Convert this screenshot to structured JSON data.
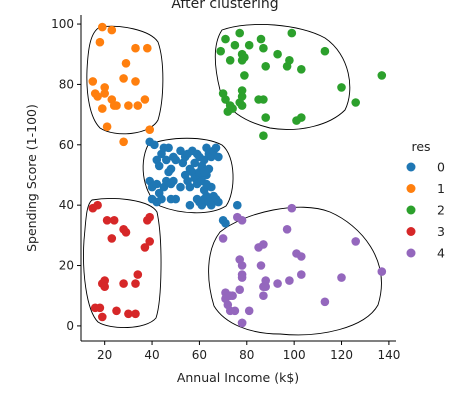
{
  "chart_data": {
    "type": "scatter",
    "title": "After clustering",
    "xlabel": "Annual Income (k$)",
    "ylabel": "Spending Score (1-100)",
    "xlim": [
      10,
      143
    ],
    "ylim": [
      -5,
      103
    ],
    "xticks": [
      20,
      40,
      60,
      80,
      100,
      120,
      140
    ],
    "yticks": [
      0,
      20,
      40,
      60,
      80,
      100
    ],
    "grid": false,
    "legend_title": "res",
    "legend_position": "right",
    "series": [
      {
        "name": "0",
        "color": "#1f77b4",
        "points": [
          [
            39,
            61
          ],
          [
            41,
            60
          ],
          [
            42,
            55
          ],
          [
            43,
            53
          ],
          [
            44,
            57
          ],
          [
            45,
            59
          ],
          [
            46,
            55
          ],
          [
            47,
            59
          ],
          [
            48,
            52
          ],
          [
            49,
            56
          ],
          [
            50,
            55
          ],
          [
            52,
            58
          ],
          [
            53,
            54
          ],
          [
            54,
            56
          ],
          [
            55,
            57
          ],
          [
            56,
            52
          ],
          [
            57,
            58
          ],
          [
            58,
            54
          ],
          [
            59,
            57
          ],
          [
            60,
            56
          ],
          [
            61,
            52
          ],
          [
            62,
            55
          ],
          [
            63,
            59
          ],
          [
            64,
            57
          ],
          [
            65,
            56
          ],
          [
            66,
            58
          ],
          [
            67,
            59
          ],
          [
            68,
            56
          ],
          [
            39,
            48
          ],
          [
            40,
            46
          ],
          [
            42,
            47
          ],
          [
            43,
            44
          ],
          [
            44,
            42
          ],
          [
            45,
            46
          ],
          [
            46,
            48
          ],
          [
            47,
            51
          ],
          [
            48,
            47
          ],
          [
            49,
            48
          ],
          [
            50,
            42
          ],
          [
            52,
            46
          ],
          [
            54,
            50
          ],
          [
            55,
            48
          ],
          [
            56,
            46
          ],
          [
            57,
            51
          ],
          [
            58,
            49
          ],
          [
            59,
            47
          ],
          [
            60,
            50
          ],
          [
            61,
            48
          ],
          [
            62,
            45
          ],
          [
            63,
            50
          ],
          [
            64,
            52
          ],
          [
            65,
            46
          ],
          [
            66,
            43
          ],
          [
            67,
            42
          ],
          [
            68,
            41
          ],
          [
            59,
            42
          ],
          [
            60,
            41
          ],
          [
            61,
            40
          ],
          [
            62,
            42
          ],
          [
            63,
            43
          ],
          [
            64,
            41
          ],
          [
            65,
            40
          ],
          [
            60,
            51
          ],
          [
            61,
            53
          ],
          [
            62,
            51
          ],
          [
            63,
            47
          ],
          [
            70,
            35
          ],
          [
            71,
            34
          ],
          [
            76,
            40
          ],
          [
            40,
            42
          ],
          [
            42,
            41
          ],
          [
            48,
            42
          ],
          [
            56,
            40
          ]
        ]
      },
      {
        "name": "1",
        "color": "#ff7f0e",
        "points": [
          [
            15,
            81
          ],
          [
            16,
            77
          ],
          [
            17,
            76
          ],
          [
            18,
            94
          ],
          [
            19,
            99
          ],
          [
            19,
            72
          ],
          [
            20,
            77
          ],
          [
            20,
            79
          ],
          [
            21,
            66
          ],
          [
            23,
            98
          ],
          [
            23,
            75
          ],
          [
            24,
            73
          ],
          [
            25,
            73
          ],
          [
            28,
            82
          ],
          [
            28,
            61
          ],
          [
            29,
            87
          ],
          [
            30,
            73
          ],
          [
            33,
            92
          ],
          [
            33,
            81
          ],
          [
            34,
            73
          ],
          [
            37,
            75
          ],
          [
            38,
            92
          ],
          [
            39,
            65
          ]
        ]
      },
      {
        "name": "2",
        "color": "#2ca02c",
        "points": [
          [
            69,
            91
          ],
          [
            70,
            77
          ],
          [
            71,
            95
          ],
          [
            71,
            75
          ],
          [
            72,
            71
          ],
          [
            73,
            88
          ],
          [
            73,
            73
          ],
          [
            74,
            72
          ],
          [
            75,
            93
          ],
          [
            77,
            97
          ],
          [
            77,
            74
          ],
          [
            78,
            90
          ],
          [
            78,
            88
          ],
          [
            78,
            76
          ],
          [
            78,
            78
          ],
          [
            78,
            73
          ],
          [
            79,
            83
          ],
          [
            79,
            89
          ],
          [
            81,
            93
          ],
          [
            85,
            75
          ],
          [
            86,
            95
          ],
          [
            87,
            75
          ],
          [
            87,
            63
          ],
          [
            87,
            92
          ],
          [
            88,
            69
          ],
          [
            88,
            86
          ],
          [
            93,
            90
          ],
          [
            97,
            86
          ],
          [
            98,
            88
          ],
          [
            99,
            97
          ],
          [
            101,
            68
          ],
          [
            103,
            85
          ],
          [
            103,
            69
          ],
          [
            113,
            91
          ],
          [
            120,
            79
          ],
          [
            126,
            74
          ],
          [
            137,
            83
          ]
        ]
      },
      {
        "name": "3",
        "color": "#d62728",
        "points": [
          [
            15,
            39
          ],
          [
            16,
            6
          ],
          [
            17,
            40
          ],
          [
            18,
            6
          ],
          [
            19,
            3
          ],
          [
            19,
            14
          ],
          [
            20,
            15
          ],
          [
            20,
            13
          ],
          [
            21,
            35
          ],
          [
            23,
            29
          ],
          [
            24,
            35
          ],
          [
            25,
            5
          ],
          [
            28,
            14
          ],
          [
            28,
            32
          ],
          [
            29,
            31
          ],
          [
            30,
            4
          ],
          [
            33,
            4
          ],
          [
            33,
            14
          ],
          [
            34,
            17
          ],
          [
            37,
            26
          ],
          [
            38,
            35
          ],
          [
            39,
            28
          ],
          [
            39,
            36
          ]
        ]
      },
      {
        "name": "4",
        "color": "#9467bd",
        "points": [
          [
            70,
            29
          ],
          [
            71,
            11
          ],
          [
            71,
            9
          ],
          [
            72,
            7
          ],
          [
            73,
            5
          ],
          [
            73,
            10
          ],
          [
            74,
            10
          ],
          [
            75,
            5
          ],
          [
            76,
            36
          ],
          [
            77,
            12
          ],
          [
            77,
            22
          ],
          [
            78,
            17
          ],
          [
            78,
            20
          ],
          [
            78,
            16
          ],
          [
            78,
            1
          ],
          [
            78,
            1
          ],
          [
            78,
            35
          ],
          [
            81,
            5
          ],
          [
            85,
            26
          ],
          [
            86,
            20
          ],
          [
            87,
            27
          ],
          [
            87,
            13
          ],
          [
            87,
            10
          ],
          [
            88,
            13
          ],
          [
            88,
            15
          ],
          [
            93,
            14
          ],
          [
            97,
            32
          ],
          [
            98,
            15
          ],
          [
            99,
            39
          ],
          [
            101,
            24
          ],
          [
            103,
            17
          ],
          [
            103,
            23
          ],
          [
            113,
            8
          ],
          [
            120,
            16
          ],
          [
            126,
            28
          ],
          [
            137,
            18
          ]
        ]
      }
    ]
  }
}
